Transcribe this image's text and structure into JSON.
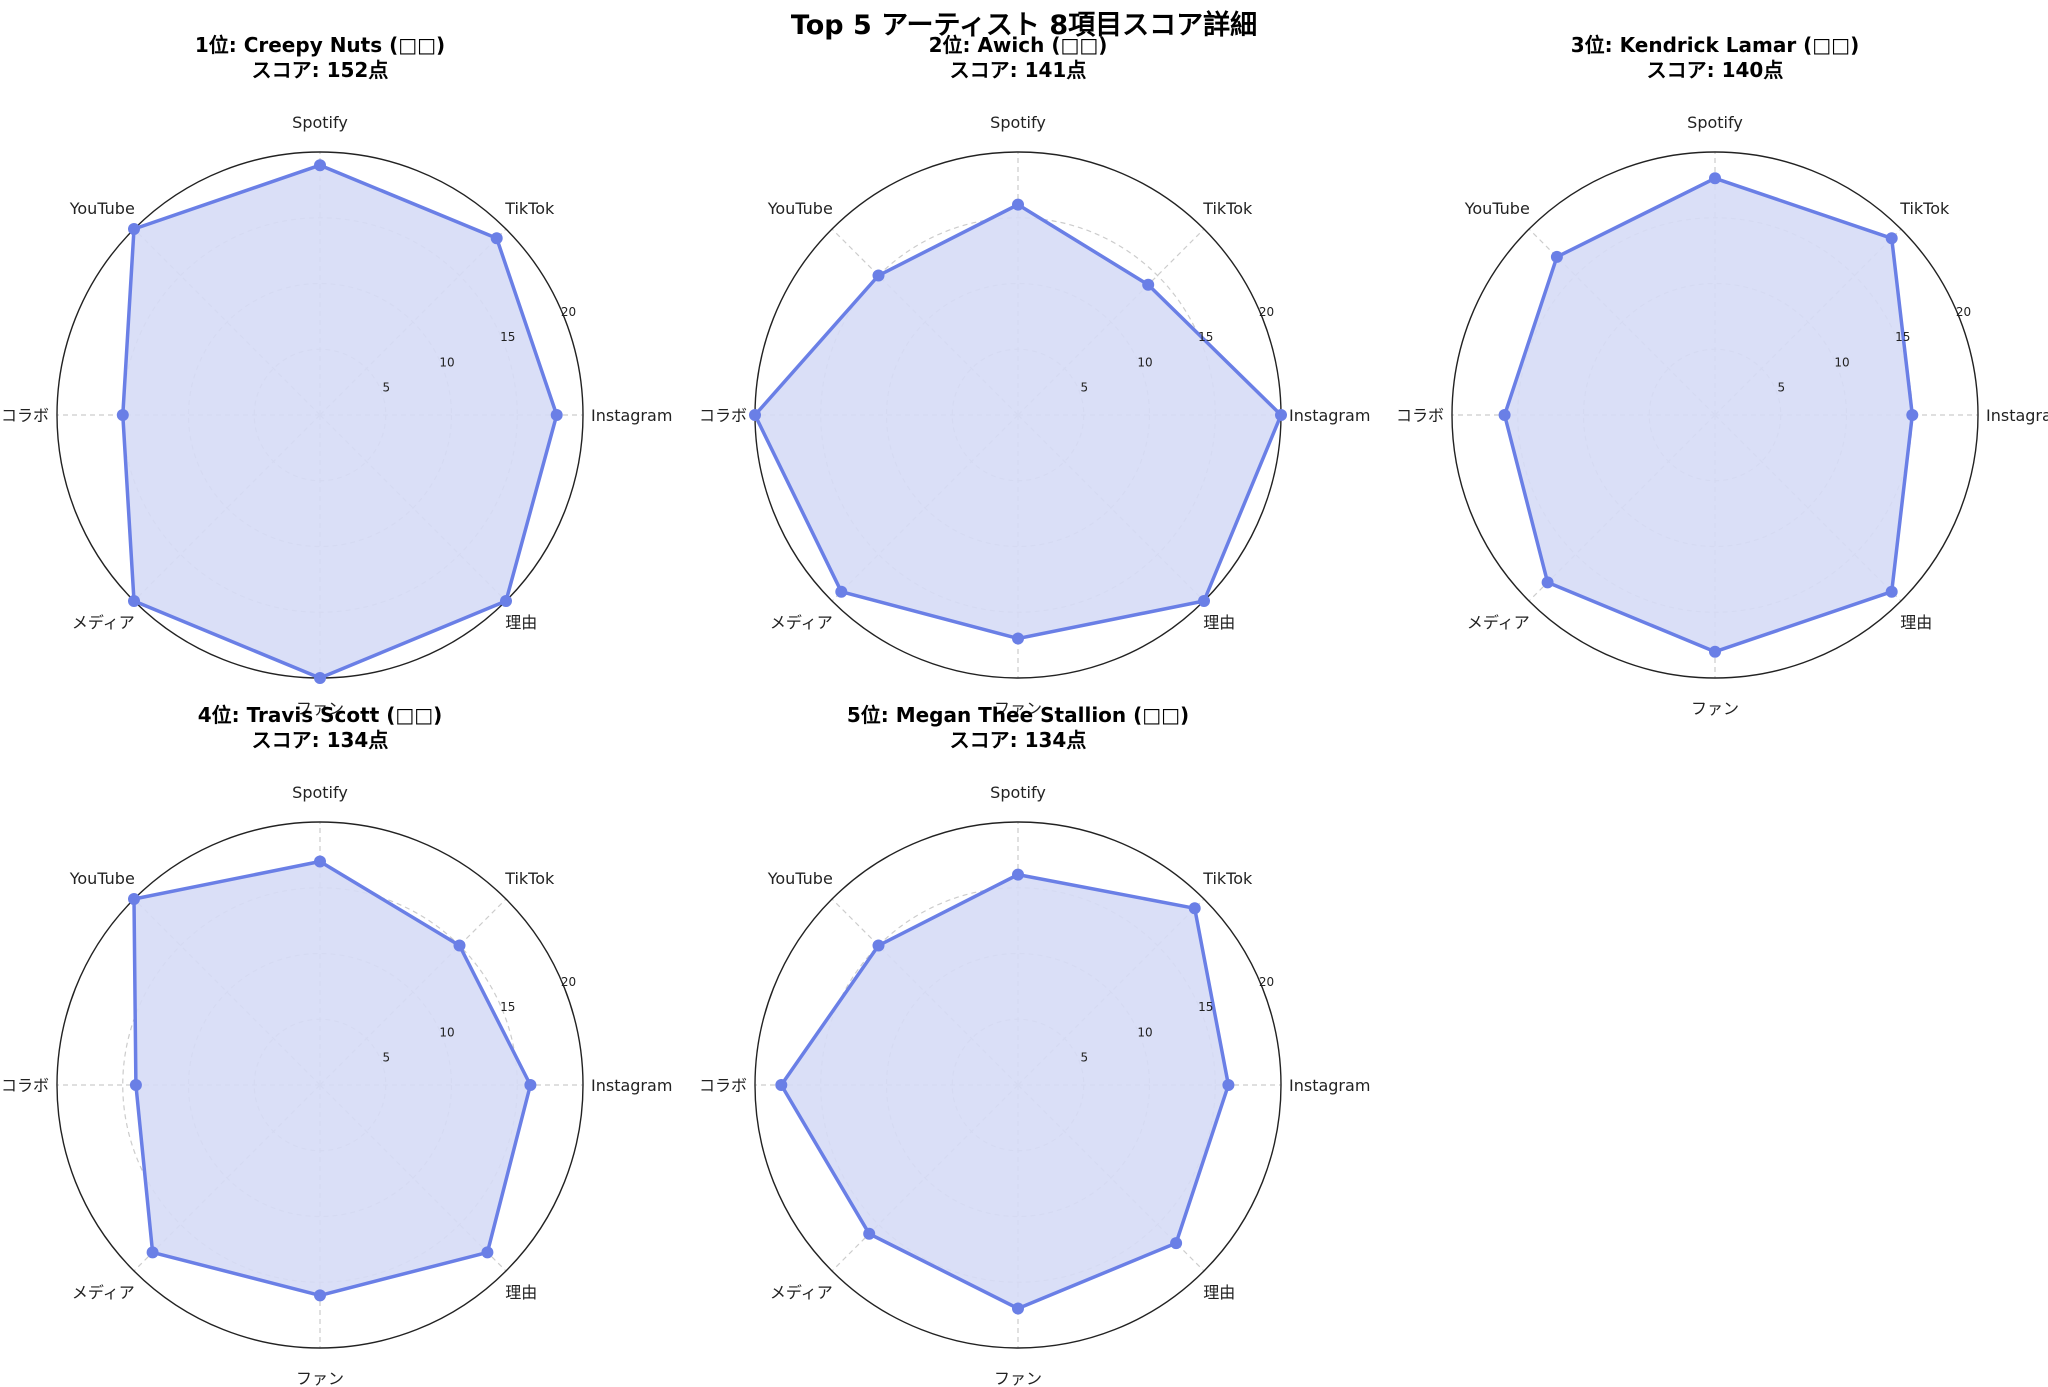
{
  "figure": {
    "title": "Top 5 アーティスト 8項目スコア詳細",
    "colors": {
      "line": "#6a7fe6",
      "fill": "#d6dcf6",
      "grid": "#cccccc",
      "frame": "#222222"
    }
  },
  "chart_data": [
    {
      "type": "radar",
      "title": "1位: Creepy Nuts (□□)",
      "subtitle": "スコア: 152点",
      "axes": [
        "Instagram",
        "TikTok",
        "Spotify",
        "YouTube",
        "コラボ",
        "メディア",
        "ファン",
        "理由"
      ],
      "values": [
        18,
        19,
        19,
        20,
        15,
        20,
        20,
        20
      ],
      "rlim": [
        0,
        20
      ],
      "rticks": [
        5,
        10,
        15,
        20
      ]
    },
    {
      "type": "radar",
      "title": "2位: Awich (□□)",
      "subtitle": "スコア: 141点",
      "axes": [
        "Instagram",
        "TikTok",
        "Spotify",
        "YouTube",
        "コラボ",
        "メディア",
        "ファン",
        "理由"
      ],
      "values": [
        20,
        14,
        16,
        15,
        20,
        19,
        17,
        20
      ],
      "rlim": [
        0,
        20
      ],
      "rticks": [
        5,
        10,
        15,
        20
      ]
    },
    {
      "type": "radar",
      "title": "3位: Kendrick Lamar (□□)",
      "subtitle": "スコア: 140点",
      "axes": [
        "Instagram",
        "TikTok",
        "Spotify",
        "YouTube",
        "コラボ",
        "メディア",
        "ファン",
        "理由"
      ],
      "values": [
        15,
        19,
        18,
        17,
        16,
        18,
        18,
        19
      ],
      "rlim": [
        0,
        20
      ],
      "rticks": [
        5,
        10,
        15,
        20
      ]
    },
    {
      "type": "radar",
      "title": "4位: Travis Scott (□□)",
      "subtitle": "スコア: 134点",
      "axes": [
        "Instagram",
        "TikTok",
        "Spotify",
        "YouTube",
        "コラボ",
        "メディア",
        "ファン",
        "理由"
      ],
      "values": [
        16,
        15,
        17,
        20,
        14,
        18,
        16,
        18
      ],
      "rlim": [
        0,
        20
      ],
      "rticks": [
        5,
        10,
        15,
        20
      ]
    },
    {
      "type": "radar",
      "title": "5位: Megan Thee Stallion (□□)",
      "subtitle": "スコア: 134点",
      "axes": [
        "Instagram",
        "TikTok",
        "Spotify",
        "YouTube",
        "コラボ",
        "メディア",
        "ファン",
        "理由"
      ],
      "values": [
        16,
        19,
        16,
        15,
        18,
        16,
        17,
        17
      ],
      "rlim": [
        0,
        20
      ],
      "rticks": [
        5,
        10,
        15,
        20
      ]
    }
  ]
}
